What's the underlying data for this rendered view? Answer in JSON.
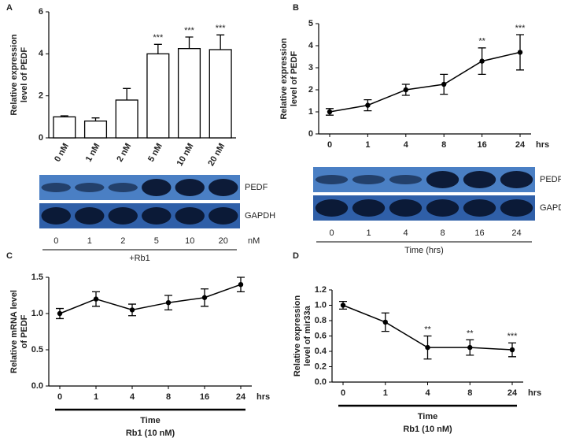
{
  "chart_data": [
    {
      "type": "bar",
      "panel": "A",
      "ylabel": [
        "Relative expression",
        "level of PEDF"
      ],
      "categories": [
        "0 nM",
        "1 nM",
        "2 nM",
        "5 nM",
        "10 nM",
        "20 nM"
      ],
      "values": [
        1.0,
        0.8,
        1.8,
        4.0,
        4.25,
        4.2
      ],
      "errors": [
        0.05,
        0.15,
        0.55,
        0.45,
        0.55,
        0.7
      ],
      "significance": [
        null,
        null,
        null,
        "***",
        "***",
        "***"
      ],
      "ylim": [
        0,
        6
      ],
      "yticks": [
        0,
        2,
        4,
        6
      ],
      "color": "#ffffff",
      "blot": {
        "bands": [
          "PEDF",
          "GAPDH"
        ],
        "lanes": [
          "0",
          "1",
          "2",
          "5",
          "10",
          "20"
        ],
        "lane_unit": "nM",
        "caption": "+Rb1"
      }
    },
    {
      "type": "line",
      "panel": "B",
      "ylabel": [
        "Relative expression",
        "level of PEDF"
      ],
      "categories": [
        "0",
        "1",
        "4",
        "8",
        "16",
        "24"
      ],
      "x_unit": "hrs",
      "values": [
        1.0,
        1.3,
        2.0,
        2.25,
        3.3,
        3.7
      ],
      "errors": [
        0.15,
        0.25,
        0.25,
        0.45,
        0.6,
        0.8
      ],
      "significance": [
        null,
        null,
        null,
        null,
        "**",
        "***"
      ],
      "ylim": [
        0,
        5
      ],
      "yticks": [
        0,
        1,
        2,
        3,
        4,
        5
      ],
      "color": "#000000",
      "blot": {
        "bands": [
          "PEDF",
          "GAPDH"
        ],
        "lanes": [
          "0",
          "1",
          "4",
          "8",
          "16",
          "24"
        ],
        "caption": "Time (hrs)"
      }
    },
    {
      "type": "line",
      "panel": "C",
      "ylabel": [
        "Relative mRNA level",
        "of PEDF"
      ],
      "categories": [
        "0",
        "1",
        "4",
        "8",
        "16",
        "24"
      ],
      "x_unit": "hrs",
      "values": [
        1.0,
        1.2,
        1.05,
        1.15,
        1.22,
        1.4
      ],
      "errors": [
        0.07,
        0.1,
        0.08,
        0.1,
        0.12,
        0.1
      ],
      "ylim": [
        0,
        1.5
      ],
      "yticks": [
        {
          "value": 0,
          "label": "0.0"
        },
        0.5,
        {
          "value": 1,
          "label": "1.0"
        },
        1.5
      ],
      "color": "#000000",
      "xlabel": [
        "Time",
        "Rb1 (10 nM)"
      ]
    },
    {
      "type": "line",
      "panel": "D",
      "ylabel": [
        "Relative expression",
        "level of mir33a"
      ],
      "categories": [
        "0",
        "1",
        "4",
        "8",
        "24"
      ],
      "x_unit": "hrs",
      "values": [
        1.0,
        0.78,
        0.45,
        0.45,
        0.42
      ],
      "errors": [
        0.05,
        0.12,
        0.15,
        0.1,
        0.09
      ],
      "significance": [
        null,
        null,
        "**",
        "**",
        "***"
      ],
      "ylim": [
        0,
        1.2
      ],
      "yticks": [
        {
          "value": 0,
          "label": "0.0"
        },
        0.2,
        0.4,
        0.6,
        0.8,
        {
          "value": 1,
          "label": "1.0"
        },
        1.2
      ],
      "color": "#000000",
      "xlabel": [
        "Time",
        "Rb1 (10 nM)"
      ]
    }
  ]
}
